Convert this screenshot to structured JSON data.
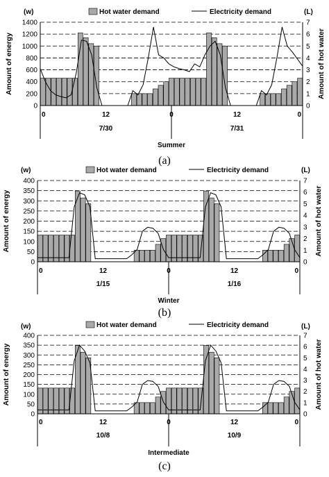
{
  "chart_data": [
    {
      "type": "bar",
      "panel_caption": "(a)",
      "season": "Summer",
      "y_unit_left": "(w)",
      "y_unit_right": "(L)",
      "ylabel_left": "Amount of energy",
      "ylabel_right": "Amount of hot water",
      "ylim_left": [
        0,
        1400
      ],
      "ylim_right": [
        0,
        7
      ],
      "yticks_left": [
        0,
        200,
        400,
        600,
        800,
        1000,
        1200,
        1400
      ],
      "yticks_right": [
        0,
        1,
        2,
        3,
        4,
        5,
        6,
        7
      ],
      "x_ticks": [
        "0",
        "12",
        "0",
        "12",
        "0"
      ],
      "day_labels": [
        "7/30",
        "7/31"
      ],
      "legend": [
        "Hot water demand",
        "Electricity demand"
      ],
      "series": [
        {
          "name": "Hot water demand",
          "kind": "bar",
          "axis": "right",
          "values": [
            2.3,
            2.3,
            2.3,
            2.3,
            2.3,
            2.3,
            2.3,
            6.1,
            5.7,
            5.2,
            5.0,
            0,
            0,
            0,
            0,
            0,
            0,
            1.0,
            1.0,
            1.0,
            1.0,
            1.4,
            1.7,
            2.0,
            2.3,
            2.3,
            2.3,
            2.3,
            2.3,
            2.3,
            2.3,
            6.1,
            5.7,
            5.2,
            5.0,
            0,
            0,
            0,
            0,
            0,
            0,
            1.0,
            1.0,
            1.0,
            1.0,
            1.4,
            1.7,
            2.0,
            2.3
          ]
        },
        {
          "name": "Electricity demand",
          "kind": "line",
          "axis": "left",
          "values": [
            620,
            400,
            250,
            180,
            150,
            130,
            180,
            550,
            1100,
            1080,
            850,
            300,
            0,
            0,
            0,
            0,
            0,
            0,
            250,
            180,
            350,
            800,
            1320,
            850,
            800,
            700,
            650,
            620,
            600,
            570,
            700,
            650,
            850,
            1000,
            1080,
            850,
            300,
            0,
            0,
            0,
            0,
            0,
            0,
            250,
            180,
            350,
            800,
            1320,
            1000,
            900,
            780,
            660
          ]
        }
      ]
    },
    {
      "type": "bar",
      "panel_caption": "(b)",
      "season": "Winter",
      "y_unit_left": "(w)",
      "y_unit_right": "(L)",
      "ylabel_left": "Amount of energy",
      "ylabel_right": "Amount of hot water",
      "ylim_left": [
        0,
        400
      ],
      "ylim_right": [
        0,
        7
      ],
      "yticks_left": [
        0,
        50,
        100,
        150,
        200,
        250,
        300,
        350,
        400
      ],
      "yticks_right": [
        0,
        1,
        2,
        3,
        4,
        5,
        6,
        7
      ],
      "x_ticks": [
        "0",
        "12",
        "0",
        "12",
        "0"
      ],
      "day_labels": [
        "1/15",
        "1/16"
      ],
      "legend": [
        "Hot water demand",
        "Electricity demand"
      ],
      "series": [
        {
          "name": "Hot water demand",
          "kind": "bar",
          "axis": "right",
          "values": [
            2.3,
            2.3,
            2.3,
            2.3,
            2.3,
            2.3,
            2.3,
            6.1,
            5.5,
            5.0,
            0,
            0,
            0,
            0,
            0,
            0,
            0,
            0,
            1.0,
            1.0,
            1.0,
            1.0,
            1.5,
            2.0,
            2.3,
            2.3,
            2.3,
            2.3,
            2.3,
            2.3,
            2.3,
            6.1,
            5.5,
            5.0,
            0,
            0,
            0,
            0,
            0,
            0,
            0,
            0,
            1.0,
            1.0,
            1.0,
            1.0,
            1.5,
            2.0,
            2.3
          ]
        },
        {
          "name": "Electricity demand",
          "kind": "line",
          "axis": "left",
          "values": [
            20,
            20,
            20,
            20,
            20,
            20,
            20,
            270,
            340,
            330,
            270,
            15,
            15,
            15,
            15,
            15,
            15,
            15,
            35,
            60,
            150,
            170,
            165,
            140,
            60,
            20,
            20,
            20,
            20,
            20,
            20,
            20,
            270,
            340,
            330,
            270,
            15,
            15,
            15,
            15,
            15,
            15,
            15,
            35,
            60,
            150,
            170,
            165,
            140,
            60,
            20
          ]
        }
      ]
    },
    {
      "type": "bar",
      "panel_caption": "(c)",
      "season": "Intermediate",
      "y_unit_left": "(w)",
      "y_unit_right": "(L)",
      "ylabel_left": "Amount of energy",
      "ylabel_right": "Amount of hot water",
      "ylim_left": [
        0,
        400
      ],
      "ylim_right": [
        0,
        7
      ],
      "yticks_left": [
        0,
        50,
        100,
        150,
        200,
        250,
        300,
        350,
        400
      ],
      "yticks_right": [
        0,
        1,
        2,
        3,
        4,
        5,
        6,
        7
      ],
      "x_ticks": [
        "0",
        "12",
        "0",
        "12",
        "0"
      ],
      "day_labels": [
        "10/8",
        "10/9"
      ],
      "legend": [
        "Hot water demand",
        "Electricity demand"
      ],
      "series": [
        {
          "name": "Hot water demand",
          "kind": "bar",
          "axis": "right",
          "values": [
            2.3,
            2.3,
            2.3,
            2.3,
            2.3,
            2.3,
            2.3,
            6.1,
            5.5,
            5.0,
            0,
            0,
            0,
            0,
            0,
            0,
            0,
            0,
            1.0,
            1.0,
            1.0,
            1.0,
            1.5,
            2.0,
            2.3,
            2.3,
            2.3,
            2.3,
            2.3,
            2.3,
            2.3,
            6.1,
            5.5,
            5.0,
            0,
            0,
            0,
            0,
            0,
            0,
            0,
            0,
            1.0,
            1.0,
            1.0,
            1.0,
            1.5,
            2.0,
            2.3
          ]
        },
        {
          "name": "Electricity demand",
          "kind": "line",
          "axis": "left",
          "values": [
            20,
            20,
            20,
            20,
            20,
            20,
            20,
            270,
            350,
            320,
            260,
            15,
            15,
            15,
            15,
            15,
            15,
            15,
            35,
            60,
            150,
            170,
            165,
            140,
            60,
            20,
            20,
            20,
            20,
            20,
            20,
            20,
            270,
            350,
            320,
            260,
            15,
            15,
            15,
            15,
            15,
            15,
            15,
            35,
            60,
            150,
            170,
            165,
            140,
            60,
            20
          ]
        }
      ]
    }
  ]
}
